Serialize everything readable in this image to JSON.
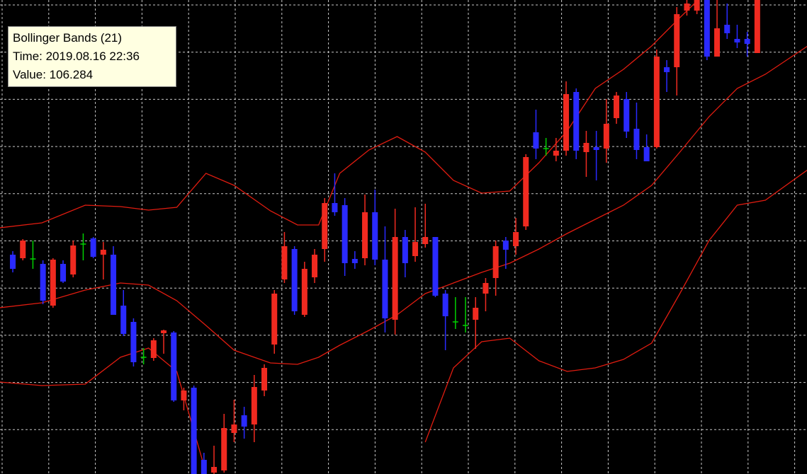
{
  "chart_data": {
    "type": "candlestick",
    "xlim": [
      -1.27,
      78.94
    ],
    "ylim": [
      105.9,
      106.57
    ],
    "grid": true,
    "up_color": "#f02a20",
    "down_color": "#2a2aff",
    "doji_color": "#00d000",
    "band_color": "#e01c10",
    "open": [
      106.21,
      106.205,
      106.204,
      106.197,
      106.138,
      106.197,
      106.182,
      106.225,
      106.233,
      106.21,
      106.21,
      106.138,
      106.115,
      106.065,
      106.064,
      106.099,
      106.1,
      106.004,
      106.022,
      105.92,
      105.902,
      105.905,
      105.958,
      105.983,
      105.97,
      106.018,
      106.083,
      106.175,
      106.218,
      106.125,
      106.178,
      106.218,
      106.283,
      106.28,
      106.204,
      106.205,
      106.27,
      106.203,
      106.118,
      106.235,
      106.208,
      106.225,
      106.235,
      106.155,
      106.115,
      106.11,
      106.118,
      106.155,
      106.177,
      106.23,
      106.222,
      106.25,
      106.383,
      106.36,
      106.35,
      106.357,
      106.44,
      106.355,
      106.362,
      106.36,
      106.403,
      106.43,
      106.388,
      106.362,
      106.362,
      106.475,
      106.475,
      106.555,
      106.555,
      106.57,
      106.49,
      106.535,
      106.515,
      106.515,
      106.495
    ],
    "high": [
      106.215,
      106.232,
      106.23,
      106.202,
      106.205,
      106.202,
      106.23,
      106.24,
      106.235,
      106.228,
      106.222,
      106.16,
      106.12,
      106.078,
      106.092,
      106.104,
      106.102,
      106.022,
      106.025,
      105.93,
      105.94,
      105.985,
      106.005,
      105.995,
      106.04,
      106.055,
      106.16,
      106.242,
      106.222,
      106.2,
      106.218,
      106.29,
      106.325,
      106.29,
      106.215,
      106.295,
      106.302,
      106.25,
      106.275,
      106.245,
      106.277,
      106.282,
      106.235,
      106.16,
      106.15,
      106.15,
      106.15,
      106.177,
      106.23,
      106.235,
      106.262,
      106.352,
      106.415,
      106.375,
      106.375,
      106.455,
      106.445,
      106.385,
      106.385,
      106.43,
      106.44,
      106.44,
      106.425,
      106.38,
      106.5,
      106.485,
      106.56,
      106.57,
      106.57,
      106.57,
      106.57,
      106.565,
      106.535,
      106.525,
      106.57
    ],
    "low": [
      106.185,
      106.202,
      106.19,
      106.14,
      106.135,
      106.17,
      106.178,
      106.202,
      106.205,
      106.175,
      106.125,
      106.095,
      106.052,
      106.055,
      106.06,
      106.07,
      106.002,
      105.99,
      105.9,
      105.9,
      105.9,
      105.902,
      105.945,
      105.95,
      105.945,
      106.01,
      106.07,
      106.17,
      106.125,
      106.122,
      106.17,
      106.2,
      106.265,
      106.18,
      106.19,
      106.195,
      106.195,
      106.1,
      106.097,
      106.178,
      106.2,
      106.22,
      106.15,
      106.075,
      106.105,
      106.1,
      106.077,
      106.13,
      106.152,
      106.19,
      106.21,
      106.245,
      106.345,
      106.35,
      106.342,
      106.35,
      106.345,
      106.32,
      106.315,
      106.34,
      106.395,
      106.375,
      106.345,
      106.342,
      106.36,
      106.44,
      106.435,
      106.548,
      106.55,
      106.485,
      106.49,
      106.515,
      106.502,
      106.49,
      106.495
    ],
    "close": [
      106.19,
      106.23,
      106.204,
      106.145,
      106.203,
      106.172,
      106.223,
      106.225,
      106.207,
      106.217,
      106.125,
      106.098,
      106.058,
      106.065,
      106.089,
      106.103,
      106.004,
      106.018,
      105.9,
      105.9,
      105.91,
      105.965,
      105.97,
      105.967,
      106.023,
      106.05,
      106.155,
      106.222,
      106.13,
      106.19,
      106.21,
      106.283,
      106.27,
      106.198,
      106.198,
      106.27,
      106.203,
      106.12,
      106.235,
      106.198,
      106.228,
      106.235,
      106.152,
      106.123,
      106.115,
      106.11,
      106.135,
      106.17,
      106.222,
      106.217,
      106.242,
      106.348,
      106.36,
      106.36,
      106.357,
      106.437,
      106.357,
      106.368,
      106.358,
      106.395,
      106.435,
      106.384,
      106.358,
      106.342,
      106.49,
      106.468,
      106.55,
      106.565,
      106.57,
      106.49,
      106.53,
      106.523,
      106.51,
      106.508,
      106.57
    ],
    "band_x": [
      -1.3,
      2.9,
      7.2,
      10.7,
      13.5,
      16.3,
      19.2,
      22.0,
      25.6,
      28.3,
      30.4,
      32.5,
      35.4,
      38.2,
      41.0,
      43.8,
      46.6,
      49.4,
      52.3,
      55.1,
      57.9,
      60.7,
      63.5,
      66.3,
      69.2,
      72.0,
      74.8,
      79.0
    ],
    "bands": [
      {
        "values": [
          106.248,
          106.255,
          106.28,
          106.278,
          106.273,
          106.277,
          106.325,
          106.308,
          106.272,
          106.252,
          106.252,
          106.325,
          106.358,
          106.377,
          106.355,
          106.315,
          106.297,
          106.3,
          106.34,
          106.385,
          106.445,
          106.472,
          106.505,
          106.545,
          106.585,
          null,
          null,
          null
        ]
      },
      {
        "values": [
          106.135,
          106.142,
          106.16,
          106.17,
          106.167,
          106.145,
          106.11,
          106.075,
          106.057,
          106.055,
          106.065,
          106.082,
          106.103,
          106.125,
          106.155,
          106.17,
          106.185,
          106.198,
          106.218,
          106.24,
          106.26,
          106.28,
          106.308,
          106.355,
          106.405,
          106.445,
          106.465,
          106.505
        ]
      },
      {
        "values": [
          106.03,
          106.025,
          106.027,
          106.065,
          106.078,
          106.045,
          105.902,
          null,
          null,
          null,
          null,
          null,
          null,
          null,
          105.945,
          106.05,
          106.087,
          106.092,
          106.06,
          106.045,
          106.05,
          106.062,
          106.085,
          106.155,
          106.23,
          106.28,
          106.287,
          106.33
        ]
      }
    ],
    "tooltip": {
      "title": "Bollinger Bands (21)",
      "time": "Time: 2019.08.16 22:36",
      "value": "Value: 106.284"
    }
  }
}
